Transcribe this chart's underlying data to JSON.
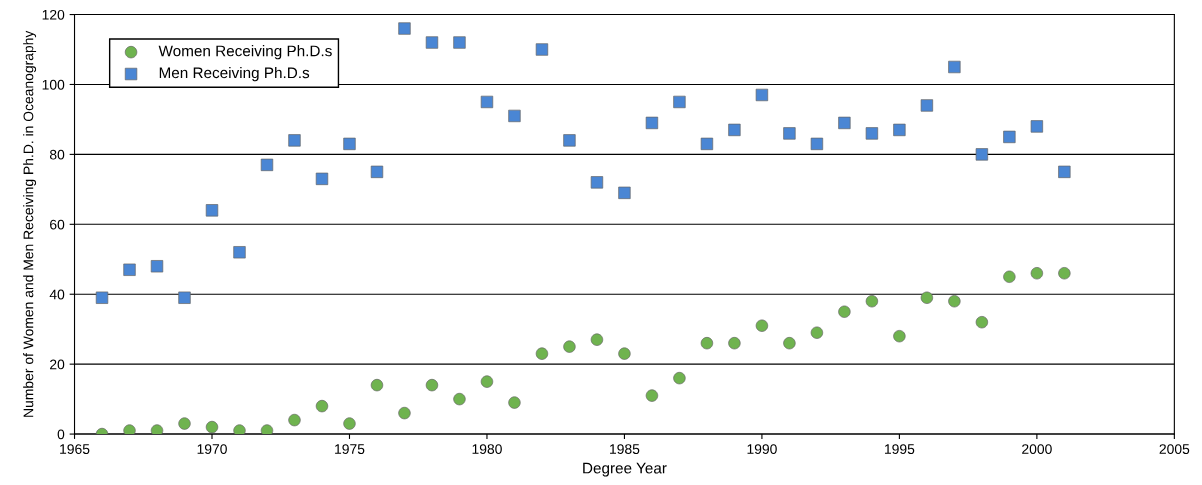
{
  "chart_data": {
    "type": "scatter",
    "xlabel": "Degree Year",
    "ylabel": "Number of Women and Men Receiving Ph.D. in Oceanography",
    "x": [
      1966,
      1967,
      1968,
      1969,
      1970,
      1971,
      1972,
      1973,
      1974,
      1975,
      1976,
      1977,
      1978,
      1979,
      1980,
      1981,
      1982,
      1983,
      1984,
      1985,
      1986,
      1987,
      1988,
      1989,
      1990,
      1991,
      1992,
      1993,
      1994,
      1995,
      1996,
      1997,
      1998,
      1999,
      2000,
      2001
    ],
    "series": [
      {
        "name": "Women Receiving Ph.D.s",
        "color": "#6fb34f",
        "marker": "circle",
        "values": [
          0,
          1,
          1,
          3,
          2,
          1,
          1,
          4,
          8,
          3,
          14,
          6,
          14,
          10,
          15,
          9,
          23,
          25,
          27,
          23,
          11,
          16,
          26,
          26,
          31,
          26,
          29,
          35,
          38,
          28,
          39,
          38,
          32,
          45,
          46,
          46
        ]
      },
      {
        "name": "Men Receiving Ph.D.s",
        "color": "#4a86d4",
        "marker": "square",
        "values": [
          39,
          47,
          48,
          39,
          64,
          52,
          77,
          84,
          73,
          83,
          75,
          116,
          112,
          112,
          95,
          91,
          110,
          84,
          72,
          69,
          89,
          95,
          83,
          87,
          97,
          86,
          83,
          89,
          86,
          87,
          94,
          105,
          80,
          85,
          88,
          75
        ]
      }
    ],
    "xlim": [
      1965,
      2005
    ],
    "xticks": [
      1965,
      1970,
      1975,
      1980,
      1985,
      1990,
      1995,
      2000,
      2005
    ],
    "ylim": [
      0,
      120
    ],
    "yticks": [
      0,
      20,
      40,
      60,
      80,
      100,
      120
    ],
    "grid": "y",
    "legend": "top left"
  }
}
